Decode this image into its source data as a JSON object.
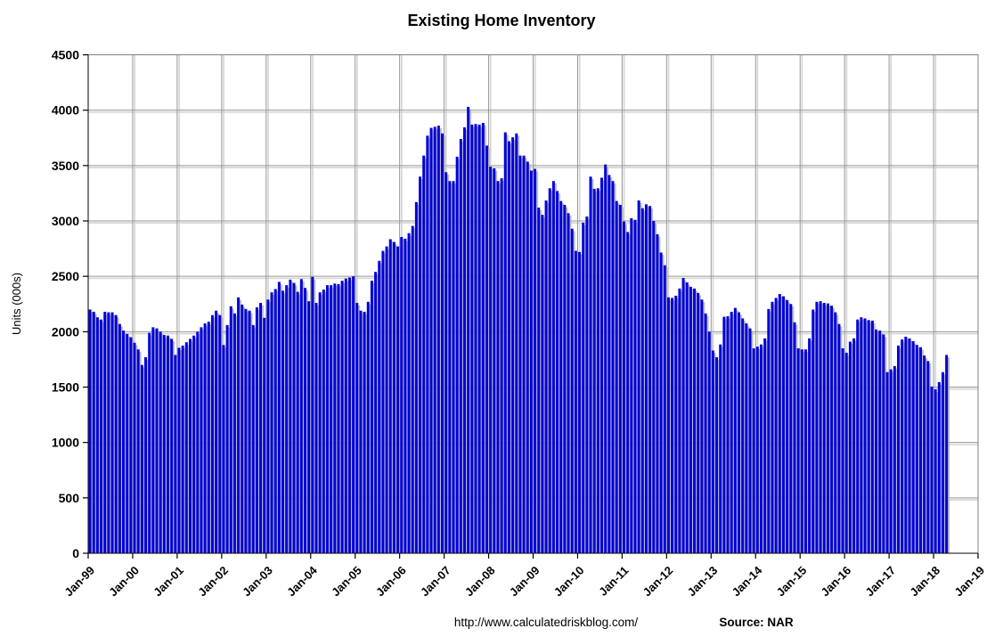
{
  "title": "Existing Home Inventory",
  "y_axis": {
    "label": "Units (000s)",
    "min": 0,
    "max": 4500,
    "step": 500,
    "tick_labels": [
      "0",
      "500",
      "1000",
      "1500",
      "2000",
      "2500",
      "3000",
      "3500",
      "4000",
      "4500"
    ]
  },
  "x_axis": {
    "tick_labels": [
      "Jan-99",
      "Jan-00",
      "Jan-01",
      "Jan-02",
      "Jan-03",
      "Jan-04",
      "Jan-05",
      "Jan-06",
      "Jan-07",
      "Jan-08",
      "Jan-09",
      "Jan-10",
      "Jan-11",
      "Jan-12",
      "Jan-13",
      "Jan-14",
      "Jan-15",
      "Jan-16",
      "Jan-17",
      "Jan-18",
      "Jan-19"
    ]
  },
  "footer": {
    "url": "http://www.calculatedriskblog.com/",
    "source": "Source: NAR"
  },
  "colors": {
    "bar": "#0000DC",
    "bar_shadow": "#B3B3B3",
    "gridline": "#969696",
    "gridline_shadow": "#D4D4D4",
    "plot_border": "#808080",
    "axis": "#000000",
    "background": "#FFFFFF"
  },
  "chart_data": {
    "type": "bar",
    "title": "Existing Home Inventory",
    "xlabel": "",
    "ylabel": "Units (000s)",
    "unit": "thousands of units",
    "ylim": [
      0,
      4500
    ],
    "grid": true,
    "legend": "none",
    "x_start": "1999-01",
    "x_end": "2018-04",
    "frequency": "monthly",
    "x_axis_span_end": "2019-01",
    "values": [
      2200,
      2180,
      2130,
      2110,
      2180,
      2175,
      2175,
      2150,
      2070,
      2010,
      1980,
      1950,
      1900,
      1840,
      1700,
      1770,
      1990,
      2040,
      2030,
      2000,
      1970,
      1965,
      1935,
      1790,
      1855,
      1875,
      1905,
      1935,
      1965,
      2000,
      2040,
      2075,
      2090,
      2150,
      2190,
      2150,
      1880,
      2060,
      2230,
      2165,
      2310,
      2245,
      2205,
      2190,
      2060,
      2220,
      2260,
      2125,
      2290,
      2355,
      2385,
      2450,
      2370,
      2420,
      2470,
      2440,
      2360,
      2475,
      2395,
      2275,
      2495,
      2260,
      2355,
      2380,
      2420,
      2420,
      2435,
      2430,
      2460,
      2480,
      2490,
      2500,
      2260,
      2190,
      2180,
      2270,
      2460,
      2540,
      2640,
      2730,
      2770,
      2835,
      2810,
      2770,
      2855,
      2840,
      2890,
      2955,
      3170,
      3400,
      3590,
      3770,
      3840,
      3850,
      3860,
      3790,
      3440,
      3360,
      3360,
      3580,
      3740,
      3845,
      4030,
      3870,
      3875,
      3870,
      3885,
      3680,
      3490,
      3475,
      3360,
      3385,
      3800,
      3720,
      3755,
      3790,
      3590,
      3590,
      3535,
      3455,
      3470,
      3120,
      3055,
      3185,
      3295,
      3360,
      3270,
      3180,
      3145,
      3070,
      2930,
      2730,
      2720,
      2985,
      3040,
      3400,
      3290,
      3295,
      3390,
      3510,
      3415,
      3360,
      3180,
      3145,
      2995,
      2900,
      3025,
      3010,
      3185,
      3115,
      3150,
      3135,
      3000,
      2880,
      2715,
      2600,
      2310,
      2305,
      2325,
      2390,
      2485,
      2445,
      2405,
      2390,
      2350,
      2290,
      2165,
      2000,
      1830,
      1770,
      1885,
      2135,
      2140,
      2180,
      2215,
      2175,
      2120,
      2075,
      2030,
      1850,
      1865,
      1885,
      1940,
      2205,
      2270,
      2305,
      2340,
      2320,
      2285,
      2250,
      2085,
      1850,
      1840,
      1840,
      1940,
      2200,
      2270,
      2275,
      2260,
      2255,
      2235,
      2175,
      2070,
      1850,
      1810,
      1910,
      1940,
      2110,
      2130,
      2120,
      2105,
      2100,
      2020,
      2010,
      1975,
      1635,
      1660,
      1690,
      1875,
      1930,
      1955,
      1940,
      1915,
      1880,
      1860,
      1785,
      1735,
      1505,
      1480,
      1545,
      1635,
      1790
    ]
  }
}
